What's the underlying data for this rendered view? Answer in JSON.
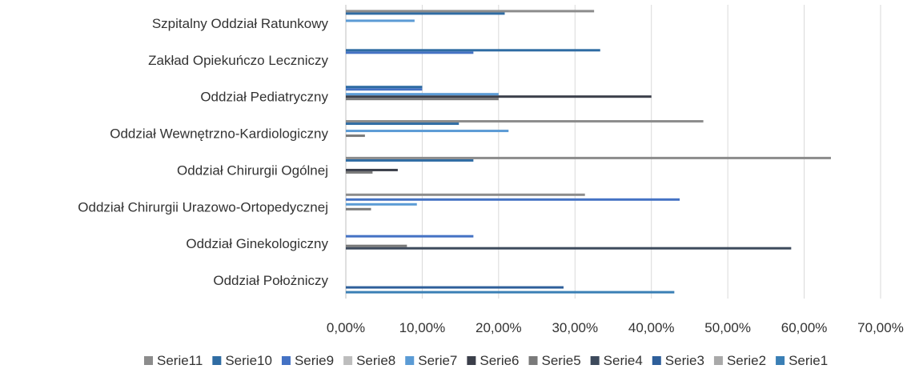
{
  "chart_data": {
    "type": "bar",
    "orientation": "horizontal",
    "categories": [
      "Szpitalny Oddział Ratunkowy",
      "Zakład Opiekuńczo Leczniczy",
      "Oddział Pediatryczny",
      "Oddział Wewnętrzno-Kardiologiczny",
      "Oddział Chirurgii Ogólnej",
      "Oddział Chirurgii Urazowo-Ortopedycznej",
      "Oddział Ginekologiczny",
      "Oddział Położniczy"
    ],
    "series": [
      {
        "name": "Serie1",
        "color": "#3a7fb5",
        "values": [
          0,
          0,
          0,
          0,
          0,
          0,
          0,
          43
        ]
      },
      {
        "name": "Serie2",
        "color": "#a9a9a9",
        "values": [
          0,
          0,
          0,
          0,
          0,
          0,
          0,
          0
        ]
      },
      {
        "name": "Serie3",
        "color": "#2e5f9a",
        "values": [
          0,
          0,
          0,
          0,
          0,
          0,
          0,
          28.5
        ]
      },
      {
        "name": "Serie4",
        "color": "#3d4a5c",
        "values": [
          0,
          0,
          0,
          0,
          0,
          0,
          58.3,
          0
        ]
      },
      {
        "name": "Serie5",
        "color": "#7a7a7a",
        "values": [
          0,
          0,
          20,
          2.5,
          3.5,
          3.3,
          8,
          0
        ]
      },
      {
        "name": "Serie6",
        "color": "#3b3f4a",
        "values": [
          0,
          0,
          40,
          0,
          6.8,
          0,
          0,
          0
        ]
      },
      {
        "name": "Serie7",
        "color": "#5b9bd5",
        "values": [
          9,
          0,
          20,
          21.3,
          0,
          9.3,
          0,
          0
        ]
      },
      {
        "name": "Serie8",
        "color": "#bdbdbd",
        "values": [
          0,
          0,
          0,
          0,
          0,
          0,
          0,
          0
        ]
      },
      {
        "name": "Serie9",
        "color": "#4472c4",
        "values": [
          0,
          16.7,
          10,
          0,
          0,
          43.7,
          16.7,
          0
        ]
      },
      {
        "name": "Serie10",
        "color": "#2f6ca3",
        "values": [
          20.8,
          33.3,
          10,
          14.8,
          16.7,
          0,
          0,
          0
        ]
      },
      {
        "name": "Serie11",
        "color": "#8c8c8c",
        "values": [
          32.5,
          0,
          0,
          46.8,
          63.5,
          31.3,
          0,
          0
        ]
      }
    ],
    "legend_order": [
      "Serie11",
      "Serie10",
      "Serie9",
      "Serie8",
      "Serie7",
      "Serie6",
      "Serie5",
      "Serie4",
      "Serie3",
      "Serie2",
      "Serie1"
    ],
    "xlim": [
      0,
      70
    ],
    "x_ticks": [
      "0,00%",
      "10,00%",
      "20,00%",
      "30,00%",
      "40,00%",
      "50,00%",
      "60,00%",
      "70,00%"
    ],
    "grid": true,
    "legend_position": "bottom"
  }
}
